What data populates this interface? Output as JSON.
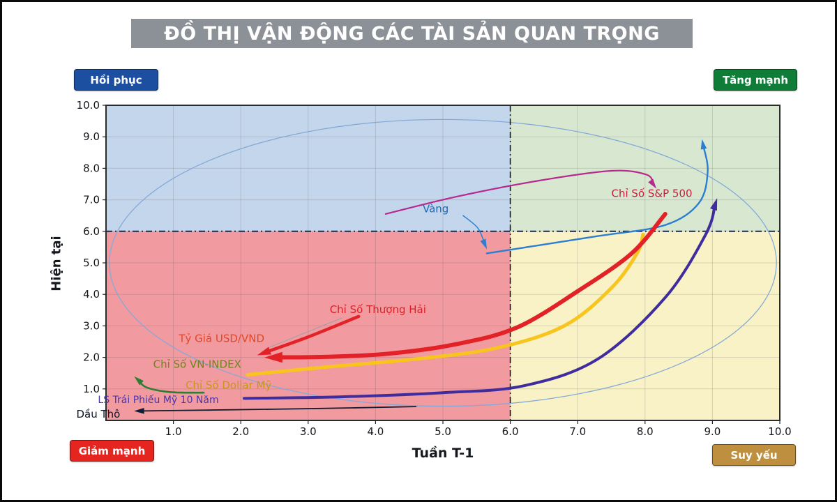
{
  "page": {
    "title": "ĐỒ THỊ VẬN ĐỘNG CÁC TÀI SẢN QUAN TRỌNG",
    "title_bg": "#8c9198"
  },
  "quadrant_labels": {
    "top_left": {
      "label": "Hồi phục",
      "bg": "#1d4fa0"
    },
    "top_right": {
      "label": "Tăng mạnh",
      "bg": "#0f7d38"
    },
    "bottom_left": {
      "label": "Giảm mạnh",
      "bg": "#e52620"
    },
    "bottom_right": {
      "label": "Suy yếu",
      "bg": "#bd8f3e"
    }
  },
  "chart_data": {
    "type": "line",
    "subtype": "quadrant-motion-trails",
    "title": "ĐỒ THỊ VẬN ĐỘNG CÁC TÀI SẢN QUAN TRỌNG",
    "xlabel": "Tuần T-1",
    "ylabel": "Hiện tại",
    "xlim": [
      0,
      10
    ],
    "ylim": [
      0,
      10
    ],
    "split": {
      "x": 6,
      "y": 6
    },
    "x_ticks": [
      "1.0",
      "2.0",
      "3.0",
      "4.0",
      "5.0",
      "6.0",
      "7.0",
      "8.0",
      "9.0",
      "10.0"
    ],
    "y_ticks": [
      "1.0",
      "2.0",
      "3.0",
      "4.0",
      "5.0",
      "6.0",
      "7.0",
      "8.0",
      "9.0",
      "10.0"
    ],
    "grid": true,
    "quadrant_fills": {
      "top_left": "#c4d6ec",
      "top_right": "#d8e8d0",
      "bottom_left": "#f19aa0",
      "bottom_right": "#f9f2c7"
    },
    "ellipse": {
      "cx": 5.0,
      "cy": 5.0,
      "rx": 4.95,
      "ry": 4.55,
      "color": "#85a9d6"
    },
    "divider_v_color": "#15181e",
    "divider_h_color": "#1c2a52",
    "series": [
      {
        "id": "vang-leader",
        "label": "",
        "color": "#2c7fd0",
        "width": 1.5,
        "arrow": true,
        "points": [
          [
            5.3,
            6.5
          ],
          [
            5.52,
            6.1
          ],
          [
            5.62,
            5.6
          ]
        ]
      },
      {
        "id": "vang",
        "label": "Vàng",
        "color": "#2c7fd0",
        "width": 2.4,
        "arrow": true,
        "points": [
          [
            5.65,
            5.3
          ],
          [
            6.4,
            5.55
          ],
          [
            7.3,
            5.85
          ],
          [
            8.3,
            6.2
          ],
          [
            8.8,
            6.9
          ],
          [
            8.93,
            7.9
          ],
          [
            8.86,
            8.75
          ]
        ]
      },
      {
        "id": "sp500",
        "label": "Chỉ Số S&P 500",
        "color": "#b62a8e",
        "width": 2.2,
        "arrow": true,
        "points": [
          [
            4.15,
            6.55
          ],
          [
            5.2,
            7.1
          ],
          [
            6.4,
            7.6
          ],
          [
            7.5,
            7.92
          ],
          [
            8.02,
            7.8
          ],
          [
            8.12,
            7.5
          ]
        ]
      },
      {
        "id": "bond10y",
        "label": "LS Trái Phiếu Mỹ 10 Năm",
        "color": "#3f2d9e",
        "width": 4,
        "arrow": true,
        "points": [
          [
            2.05,
            0.7
          ],
          [
            3.5,
            0.75
          ],
          [
            5.0,
            0.88
          ],
          [
            6.2,
            1.1
          ],
          [
            7.3,
            1.95
          ],
          [
            8.3,
            3.9
          ],
          [
            8.9,
            5.9
          ],
          [
            9.04,
            6.85
          ]
        ]
      },
      {
        "id": "dollar",
        "label": "Chỉ Số Dollar Mỹ",
        "color": "#f7c51e",
        "width": 5,
        "arrow": false,
        "points": [
          [
            2.1,
            1.45
          ],
          [
            3.3,
            1.7
          ],
          [
            4.6,
            1.95
          ],
          [
            5.8,
            2.3
          ],
          [
            6.8,
            3.0
          ],
          [
            7.5,
            4.2
          ],
          [
            7.88,
            5.3
          ],
          [
            7.97,
            5.9
          ]
        ]
      },
      {
        "id": "usdvnd",
        "label": "Tỷ Giá USD/VND",
        "color": "#e32227",
        "width": 6,
        "arrow": true,
        "points": [
          [
            8.3,
            6.55
          ],
          [
            7.8,
            5.3
          ],
          [
            7.0,
            4.1
          ],
          [
            6.1,
            2.95
          ],
          [
            5.2,
            2.42
          ],
          [
            4.2,
            2.12
          ],
          [
            3.3,
            2.02
          ],
          [
            2.5,
            2.0
          ]
        ]
      },
      {
        "id": "shanghai-leader",
        "label": "",
        "color": "#9aa0a6",
        "width": 1,
        "arrow": false,
        "points": [
          [
            3.5,
            3.25
          ],
          [
            2.4,
            2.3
          ]
        ]
      },
      {
        "id": "shanghai",
        "label": "Chỉ Số Thượng Hải",
        "color": "#e32227",
        "width": 4.5,
        "arrow": true,
        "points": [
          [
            3.75,
            3.3
          ],
          [
            3.0,
            2.65
          ],
          [
            2.35,
            2.15
          ]
        ]
      },
      {
        "id": "vnindex",
        "label": "Chỉ Số VN-INDEX",
        "color": "#2f7d32",
        "width": 2.6,
        "arrow": true,
        "points": [
          [
            1.45,
            0.88
          ],
          [
            0.95,
            0.9
          ],
          [
            0.6,
            1.05
          ],
          [
            0.48,
            1.28
          ]
        ]
      },
      {
        "id": "dautho",
        "label": "Dầu Thô",
        "color": "#141c30",
        "width": 1.8,
        "arrow": true,
        "points": [
          [
            4.6,
            0.44
          ],
          [
            3.2,
            0.38
          ],
          [
            1.6,
            0.33
          ],
          [
            0.5,
            0.3
          ]
        ]
      }
    ],
    "annotations": [
      {
        "text": "Vàng",
        "x": 4.7,
        "y": 6.72,
        "color": "#1d68b5",
        "size": 15
      },
      {
        "text": "Chỉ Số S&P 500",
        "x": 7.5,
        "y": 7.2,
        "color": "#c2203c",
        "size": 15
      },
      {
        "text": "Chỉ Số Thượng Hải",
        "x": 3.32,
        "y": 3.52,
        "color": "#dd2026",
        "size": 15
      },
      {
        "text": "Tỷ Giá USD/VND",
        "x": 1.08,
        "y": 2.6,
        "color": "#e0482a",
        "size": 15
      },
      {
        "text": "Chỉ Số VN-INDEX",
        "x": 0.7,
        "y": 1.78,
        "color": "#70831f",
        "size": 15
      },
      {
        "text": "Chỉ Số Dollar Mỹ",
        "x": 1.18,
        "y": 1.12,
        "color": "#c9961c",
        "size": 15
      },
      {
        "text": "LS Trái Phiếu Mỹ 10 Năm",
        "x": -0.12,
        "y": 0.66,
        "color": "#4936ad",
        "size": 14
      },
      {
        "text": "Dầu Thô",
        "x": -0.44,
        "y": 0.2,
        "color": "#0e1526",
        "size": 15
      }
    ]
  }
}
